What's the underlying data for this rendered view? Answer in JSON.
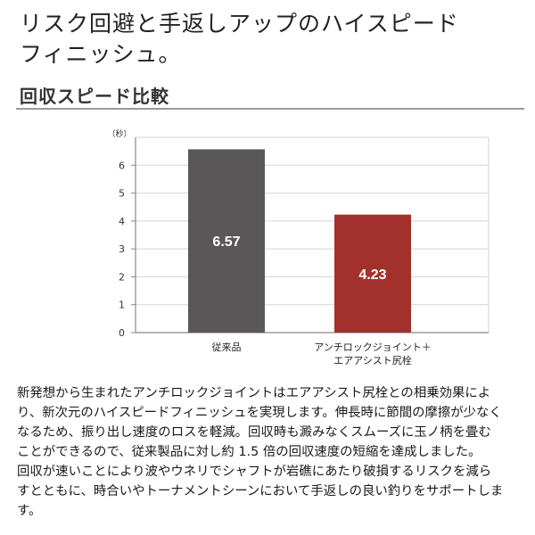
{
  "headline": {
    "line1": "リスク回避と手返しアップのハイスピード",
    "line2": "フィニッシュ。"
  },
  "section_title": "回収スピード比較",
  "chart_data": {
    "type": "bar",
    "title": "",
    "xlabel": "",
    "ylabel": "（秒）",
    "ylim": [
      0,
      7
    ],
    "yticks": [
      0,
      1,
      2,
      3,
      4,
      5,
      6
    ],
    "grid": true,
    "categories": [
      [
        "従来品"
      ],
      [
        "アンチロックジョイント＋",
        "エアアシスト尻栓"
      ]
    ],
    "values": [
      6.57,
      4.23
    ],
    "data_labels": [
      "6.57",
      "4.23"
    ],
    "colors": [
      "#595757",
      "#a2312d"
    ]
  },
  "body_lines": [
    "新発想から生まれたアンチロックジョイントはエアアシスト尻栓との相乗効果によ",
    "り、新次元のハイスピードフィニッシュを実現します。伸長時に節間の摩擦が少なく",
    "なるため、振り出し速度のロスを軽減。回収時も澱みなくスムーズに玉ノ柄を畳む",
    "ことができるので、従来製品に対し約 1.5 倍の回収速度の短縮を達成しました。",
    "回収が速いことにより波やウネリでシャフトが岩礁にあたり破損するリスクを減ら",
    "すとともに、時合いやトーナメントシーンにおいて手返しの良い釣りをサポートしま",
    "す。"
  ]
}
